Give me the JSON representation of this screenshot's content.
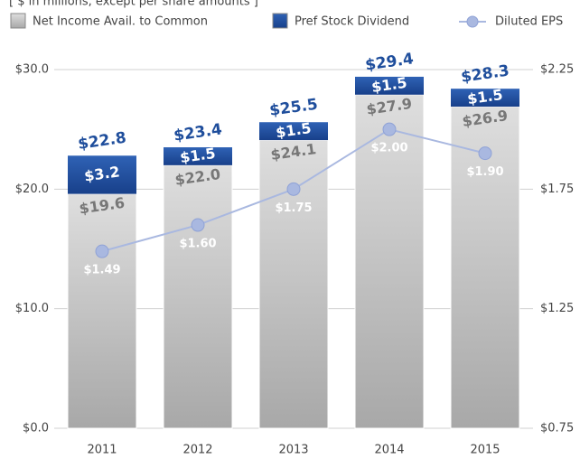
{
  "chart_data": {
    "type": "bar",
    "subtitle": "[ $ in millions, except per share amounts ]",
    "categories": [
      "2011",
      "2012",
      "2013",
      "2014",
      "2015"
    ],
    "series": [
      {
        "name": "Net Income Avail. to Common",
        "color": "#b8b8b8",
        "values": [
          19.6,
          22.0,
          24.1,
          27.9,
          26.9
        ],
        "value_labels": [
          "$19.6",
          "$22.0",
          "$24.1",
          "$27.9",
          "$26.9"
        ]
      },
      {
        "name": "Pref Stock Dividend",
        "color": "#1f4e9c",
        "values": [
          3.2,
          1.5,
          1.5,
          1.5,
          1.5
        ],
        "value_labels": [
          "$3.2",
          "$1.5",
          "$1.5",
          "$1.5",
          "$1.5"
        ]
      },
      {
        "name": "Diluted EPS",
        "color": "#a9b8e0",
        "axis": "y2",
        "type": "line",
        "values": [
          1.49,
          1.6,
          1.75,
          2.0,
          1.9
        ],
        "value_labels": [
          "$1.49",
          "$1.60",
          "$1.75",
          "$2.00",
          "$1.90"
        ]
      }
    ],
    "total_labels": [
      "$22.8",
      "$23.4",
      "$25.5",
      "$29.4",
      "$28.3"
    ],
    "ylim": [
      0,
      30
    ],
    "yticks": [
      {
        "value": 0,
        "label": "$0.0"
      },
      {
        "value": 10,
        "label": "$10.0"
      },
      {
        "value": 20,
        "label": "$20.0"
      },
      {
        "value": 30,
        "label": "$30.0"
      }
    ],
    "y2lim": [
      0.75,
      2.25
    ],
    "y2ticks": [
      {
        "value": 0.75,
        "label": "$0.75"
      },
      {
        "value": 1.25,
        "label": "$1.25"
      },
      {
        "value": 1.75,
        "label": "$1.75"
      },
      {
        "value": 2.25,
        "label": "$2.25"
      }
    ],
    "grid": true
  }
}
